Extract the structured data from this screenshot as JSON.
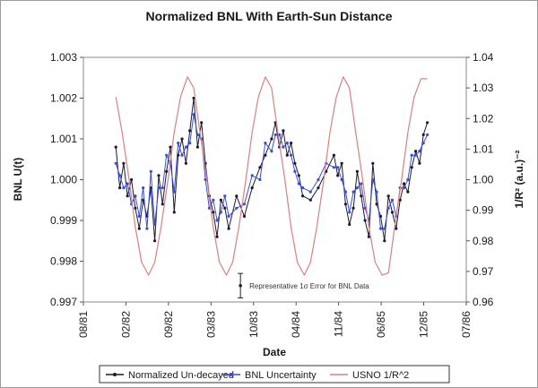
{
  "chart_data": {
    "type": "line",
    "title": "Normalized BNL With Earth-Sun Distance",
    "xlabel": "Date",
    "ylabel_left": "BNL U(t)",
    "ylabel_right": "1/R² (a.u.)⁻²",
    "x_ticks": [
      "08/81",
      "02/82",
      "09/82",
      "03/83",
      "10/83",
      "04/84",
      "11/84",
      "06/85",
      "12/85",
      "07/86"
    ],
    "xlim": [
      1981.583,
      1986.5
    ],
    "ylim_left": [
      0.997,
      1.003
    ],
    "ylim_right": [
      0.96,
      1.04
    ],
    "y_ticks_left": [
      "0.997",
      "0.998",
      "0.999",
      "1.000",
      "1.001",
      "1.002",
      "1.003"
    ],
    "y_ticks_right": [
      "0.96",
      "0.97",
      "0.98",
      "0.99",
      "1.00",
      "1.01",
      "1.02",
      "1.03",
      "1.04"
    ],
    "grid": false,
    "legend_position": "bottom",
    "series": [
      {
        "name": "Normalized Un-decayed",
        "axis": "left",
        "color": "#1a1a33",
        "x": [
          1982.0,
          1982.05,
          1982.1,
          1982.15,
          1982.2,
          1982.25,
          1982.3,
          1982.35,
          1982.4,
          1982.45,
          1982.5,
          1982.55,
          1982.6,
          1982.65,
          1982.7,
          1982.75,
          1982.8,
          1982.85,
          1982.9,
          1982.95,
          1983.0,
          1983.05,
          1983.1,
          1983.15,
          1983.2,
          1983.25,
          1983.3,
          1983.35,
          1983.4,
          1983.45,
          1983.55,
          1983.65,
          1983.75,
          1983.85,
          1983.92,
          1984.0,
          1984.05,
          1984.1,
          1984.15,
          1984.2,
          1984.25,
          1984.3,
          1984.35,
          1984.4,
          1984.5,
          1984.6,
          1984.7,
          1984.8,
          1984.85,
          1984.9,
          1984.95,
          1985.0,
          1985.05,
          1985.1,
          1985.15,
          1985.2,
          1985.25,
          1985.3,
          1985.35,
          1985.4,
          1985.45,
          1985.5,
          1985.55,
          1985.6,
          1985.65,
          1985.7,
          1985.75,
          1985.8,
          1985.85,
          1985.9,
          1985.95,
          1986.0
        ],
        "values": [
          1.0008,
          0.9998,
          1.0004,
          0.9996,
          1.0,
          0.9993,
          0.9988,
          0.9995,
          0.9991,
          0.9998,
          0.9985,
          1.0001,
          0.9994,
          1.0002,
          1.0008,
          0.9992,
          1.0006,
          1.001,
          1.0004,
          1.0012,
          1.002,
          1.0008,
          1.0014,
          1.0004,
          0.9996,
          0.9992,
          0.9986,
          0.9995,
          0.9993,
          0.9988,
          0.9996,
          0.9991,
          0.9998,
          1.0003,
          1.0006,
          1.001,
          1.0014,
          1.0008,
          1.0012,
          1.0006,
          1.0009,
          1.0004,
          1.0001,
          0.9996,
          0.9995,
          0.9998,
          1.0002,
          1.0006,
          1.0001,
          1.0004,
          0.9994,
          0.9989,
          0.9993,
          1.0002,
          0.9996,
          0.999,
          0.9986,
          1.0004,
          0.9994,
          0.9991,
          0.9985,
          0.9996,
          0.9992,
          0.9988,
          0.9995,
          0.9999,
          0.9997,
          1.0003,
          1.0007,
          1.0004,
          1.0011,
          1.0014
        ]
      },
      {
        "name": "BNL Uncertainty",
        "axis": "left",
        "color": "#3b4fd6",
        "x": [
          1982.0,
          1982.05,
          1982.1,
          1982.15,
          1982.2,
          1982.25,
          1982.3,
          1982.35,
          1982.4,
          1982.45,
          1982.5,
          1982.55,
          1982.6,
          1982.65,
          1982.7,
          1982.75,
          1982.8,
          1982.85,
          1982.9,
          1982.95,
          1983.0,
          1983.05,
          1983.1,
          1983.15,
          1983.2,
          1983.25,
          1983.3,
          1983.35,
          1983.4,
          1983.45,
          1983.55,
          1983.65,
          1983.75,
          1983.85,
          1983.92,
          1984.0,
          1984.05,
          1984.1,
          1984.15,
          1984.2,
          1984.25,
          1984.3,
          1984.35,
          1984.4,
          1984.5,
          1984.6,
          1984.7,
          1984.8,
          1984.85,
          1984.9,
          1984.95,
          1985.0,
          1985.05,
          1985.1,
          1985.15,
          1985.2,
          1985.25,
          1985.3,
          1985.35,
          1985.4,
          1985.45,
          1985.5,
          1985.55,
          1985.6,
          1985.65,
          1985.7,
          1985.75,
          1985.8,
          1985.85,
          1985.9,
          1985.95,
          1986.0
        ],
        "values": [
          1.0004,
          1.0001,
          0.9998,
          0.9999,
          0.9994,
          0.9996,
          0.9991,
          0.9998,
          0.9988,
          1.0002,
          0.9989,
          0.9998,
          0.9998,
          1.0006,
          1.0004,
          0.9997,
          1.0009,
          1.0006,
          1.0008,
          1.0009,
          1.0016,
          1.0011,
          1.001,
          1.0,
          0.9993,
          0.9995,
          0.999,
          0.9992,
          0.9996,
          0.9991,
          0.9993,
          0.9994,
          1.0001,
          1.0,
          1.0009,
          1.0007,
          1.0011,
          1.0011,
          1.0008,
          1.0009,
          1.0006,
          1.0002,
          0.9999,
          0.9998,
          0.9997,
          1.0,
          1.0004,
          1.0003,
          1.0003,
          1.0,
          0.9997,
          0.9992,
          0.9997,
          0.9998,
          0.9999,
          0.9993,
          0.999,
          1.0,
          0.9997,
          0.9988,
          0.9988,
          0.9993,
          0.9995,
          0.9991,
          0.9998,
          0.9998,
          1.0,
          1.0006,
          1.0006,
          1.0007,
          1.0009,
          1.0011
        ]
      },
      {
        "name": "USNO 1/R^2",
        "axis": "right",
        "color": "#d98080",
        "x": [
          1982.0,
          1982.08,
          1982.17,
          1982.25,
          1982.33,
          1982.42,
          1982.5,
          1982.58,
          1982.67,
          1982.75,
          1982.83,
          1982.92,
          1983.0,
          1983.08,
          1983.17,
          1983.25,
          1983.33,
          1983.42,
          1983.5,
          1983.58,
          1983.67,
          1983.75,
          1983.83,
          1983.92,
          1984.0,
          1984.08,
          1984.17,
          1984.25,
          1984.33,
          1984.42,
          1984.5,
          1984.58,
          1984.67,
          1984.75,
          1984.83,
          1984.92,
          1985.0,
          1985.08,
          1985.17,
          1985.25,
          1985.33,
          1985.42,
          1985.5,
          1985.58,
          1985.67,
          1985.75,
          1985.83,
          1985.92,
          1986.0
        ],
        "values": [
          1.027,
          1.0155,
          1.0,
          0.9845,
          0.973,
          0.9688,
          0.973,
          0.9845,
          1.0,
          1.0155,
          1.027,
          1.0336,
          1.03,
          1.0155,
          1.0,
          0.9845,
          0.973,
          0.9688,
          0.973,
          0.9845,
          1.0,
          1.0155,
          1.027,
          1.0336,
          1.03,
          1.0155,
          1.0,
          0.9845,
          0.973,
          0.9688,
          0.973,
          0.9845,
          1.0,
          1.0155,
          1.027,
          1.0336,
          1.03,
          1.0155,
          1.0,
          0.9845,
          0.973,
          0.9688,
          0.9695,
          0.9845,
          1.0,
          1.0155,
          1.027,
          1.033,
          1.033
        ]
      }
    ],
    "annotation": {
      "text": "Representative 1σ Error for BNL Data",
      "x": 1983.6,
      "y": 0.9974,
      "error": 0.0003
    }
  }
}
